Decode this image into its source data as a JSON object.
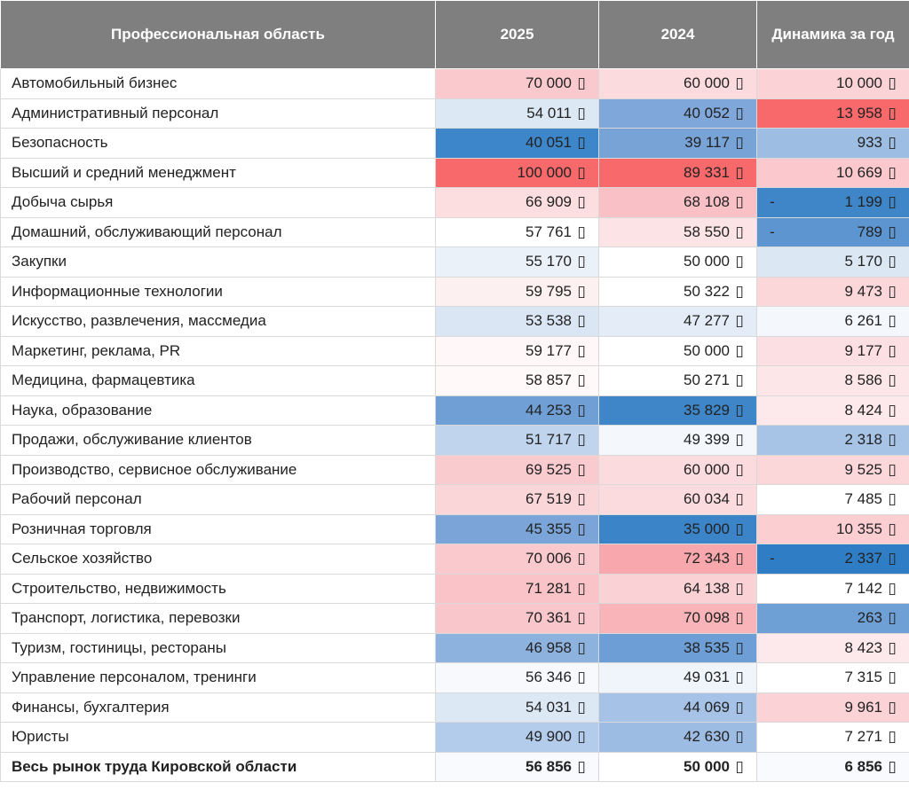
{
  "headers": {
    "area": "Профессиональная область",
    "y2025": "2025",
    "y2024": "2024",
    "dynamics": "Динамика за год"
  },
  "currency_glyph": "▯",
  "rows": [
    {
      "name": "Автомобильный бизнес",
      "v2025": "70 000",
      "v2024": "60 000",
      "dyn": "10 000",
      "neg": false,
      "c2025": "#f9c9cd",
      "c2024": "#fbdbde",
      "cdyn": "#fbd3d6"
    },
    {
      "name": "Административный персонал",
      "v2025": "54 011",
      "v2024": "40 052",
      "dyn": "13 958",
      "neg": false,
      "c2025": "#dde8f5",
      "c2024": "#7fa7d9",
      "cdyn": "#f8696b"
    },
    {
      "name": "Безопасность",
      "v2025": "40 051",
      "v2024": "39 117",
      "dyn": "933",
      "neg": false,
      "c2025": "#3d86c9",
      "c2024": "#78a3d6",
      "cdyn": "#9ebde3"
    },
    {
      "name": "Высший и средний менеджмент",
      "v2025": "100 000",
      "v2024": "89 331",
      "dyn": "10 669",
      "neg": false,
      "c2025": "#f8696b",
      "c2024": "#f8696b",
      "cdyn": "#fbc9cd"
    },
    {
      "name": "Добыча сырья",
      "v2025": "66 909",
      "v2024": "68 108",
      "dyn": "1 199",
      "neg": true,
      "c2025": "#fcdde0",
      "c2024": "#f9c1c5",
      "cdyn": "#3f86c8"
    },
    {
      "name": "Домашний, обслуживающий персонал",
      "v2025": "57 761",
      "v2024": "58 550",
      "dyn": "789",
      "neg": true,
      "c2025": "#ffffff",
      "c2024": "#fce3e6",
      "cdyn": "#5d95d0"
    },
    {
      "name": "Закупки",
      "v2025": "55 170",
      "v2024": "50 000",
      "dyn": "5 170",
      "neg": false,
      "c2025": "#ebf1f9",
      "c2024": "#ffffff",
      "cdyn": "#dce7f4"
    },
    {
      "name": "Информационные технологии",
      "v2025": "59 795",
      "v2024": "50 322",
      "dyn": "9 473",
      "neg": false,
      "c2025": "#fdf0f1",
      "c2024": "#ffffff",
      "cdyn": "#fbd7da"
    },
    {
      "name": "Искусство, развлечения, массмедиа",
      "v2025": "53 538",
      "v2024": "47 277",
      "dyn": "6 261",
      "neg": false,
      "c2025": "#dbe6f4",
      "c2024": "#e3ecf7",
      "cdyn": "#f4f7fc"
    },
    {
      "name": "Маркетинг, реклама, PR",
      "v2025": "59 177",
      "v2024": "50 000",
      "dyn": "9 177",
      "neg": false,
      "c2025": "#fff7f8",
      "c2024": "#ffffff",
      "cdyn": "#fcdfe2"
    },
    {
      "name": "Медицина, фармацевтика",
      "v2025": "58 857",
      "v2024": "50 271",
      "dyn": "8 586",
      "neg": false,
      "c2025": "#fff9fa",
      "c2024": "#ffffff",
      "cdyn": "#fde6e8"
    },
    {
      "name": "Наука, образование",
      "v2025": "44 253",
      "v2024": "35 829",
      "dyn": "8 424",
      "neg": false,
      "c2025": "#6f9fd5",
      "c2024": "#3f86c8",
      "cdyn": "#fde9eb"
    },
    {
      "name": "Продажи, обслуживание клиентов",
      "v2025": "51 717",
      "v2024": "49 399",
      "dyn": "2 318",
      "neg": false,
      "c2025": "#c0d4ed",
      "c2024": "#f4f7fc",
      "cdyn": "#a7c3e6"
    },
    {
      "name": "Производство, сервисное обслуживание",
      "v2025": "69 525",
      "v2024": "60 000",
      "dyn": "9 525",
      "neg": false,
      "c2025": "#f9cbcf",
      "c2024": "#fbdbde",
      "cdyn": "#fbd7da"
    },
    {
      "name": "Рабочий персонал",
      "v2025": "67 519",
      "v2024": "60 034",
      "dyn": "7 485",
      "neg": false,
      "c2025": "#fad6d9",
      "c2024": "#fbdbde",
      "cdyn": "#ffffff"
    },
    {
      "name": "Розничная торговля",
      "v2025": "45 355",
      "v2024": "35 000",
      "dyn": "10 355",
      "neg": false,
      "c2025": "#7ba5d8",
      "c2024": "#3a84c7",
      "cdyn": "#fbcfd2"
    },
    {
      "name": "Сельское хозяйство",
      "v2025": "70 006",
      "v2024": "72 343",
      "dyn": "2 337",
      "neg": true,
      "c2025": "#f9c9cd",
      "c2024": "#f8a8ad",
      "cdyn": "#2f7ec5"
    },
    {
      "name": "Строительство, недвижимость",
      "v2025": "71 281",
      "v2024": "64 138",
      "dyn": "7 142",
      "neg": false,
      "c2025": "#f9c3c7",
      "c2024": "#fad2d5",
      "cdyn": "#ffffff"
    },
    {
      "name": "Транспорт, логистика, перевозки",
      "v2025": "70 361",
      "v2024": "70 098",
      "dyn": "263",
      "neg": false,
      "c2025": "#f9c7cb",
      "c2024": "#f8b4b8",
      "cdyn": "#6e9fd5"
    },
    {
      "name": "Туризм, гостиницы, рестораны",
      "v2025": "46 958",
      "v2024": "38 535",
      "dyn": "8 423",
      "neg": false,
      "c2025": "#8eb2de",
      "c2024": "#6d9ed5",
      "cdyn": "#fde9eb"
    },
    {
      "name": "Управление персоналом, тренинги",
      "v2025": "56 346",
      "v2024": "49 031",
      "dyn": "7 315",
      "neg": false,
      "c2025": "#f7f9fd",
      "c2024": "#f0f5fb",
      "cdyn": "#ffffff"
    },
    {
      "name": "Финансы, бухгалтерия",
      "v2025": "54 031",
      "v2024": "44 069",
      "dyn": "9 961",
      "neg": false,
      "c2025": "#dde8f5",
      "c2024": "#a6c2e6",
      "cdyn": "#fbd3d6"
    },
    {
      "name": "Юристы",
      "v2025": "49 900",
      "v2024": "42 630",
      "dyn": "7 271",
      "neg": false,
      "c2025": "#b4cceb",
      "c2024": "#9dbce3",
      "cdyn": "#ffffff"
    }
  ],
  "total": {
    "name": "Весь рынок труда Кировской области",
    "v2025": "56 856",
    "v2024": "50 000",
    "dyn": "6 856",
    "neg": false,
    "c2025": "#f8fafd",
    "c2024": "#ffffff",
    "cdyn": "#f8fafd"
  }
}
